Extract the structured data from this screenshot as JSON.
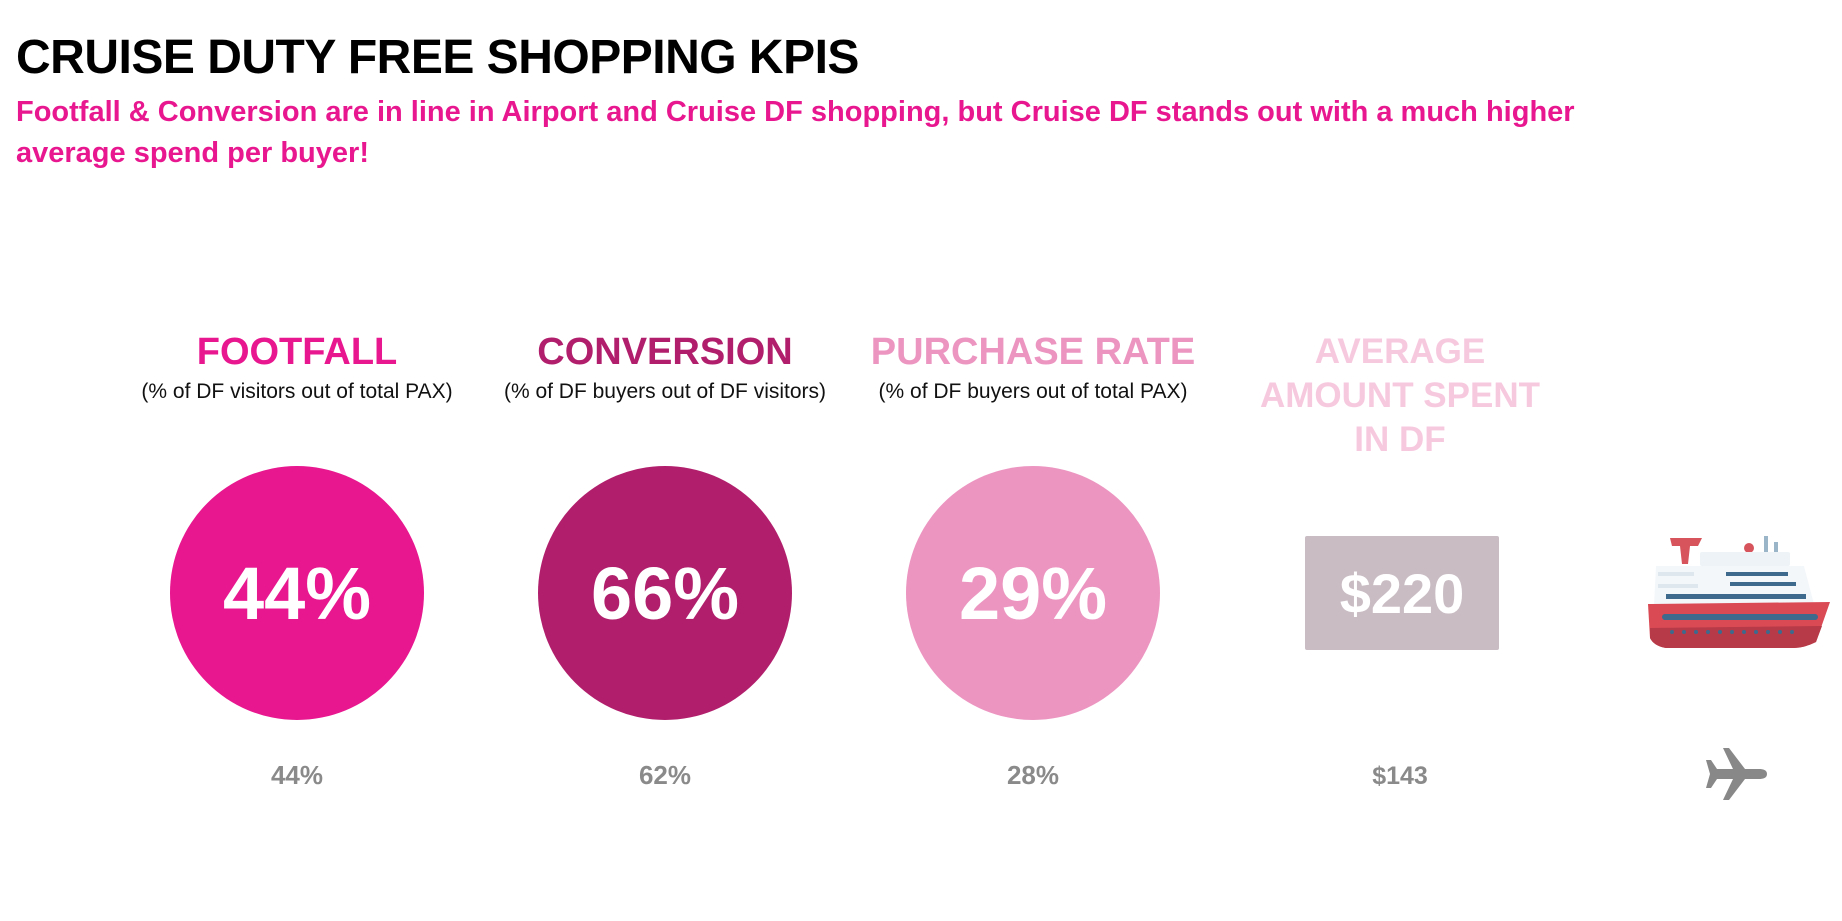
{
  "header": {
    "title": "CRUISE DUTY FREE SHOPPING KPIS",
    "subtitle": "Footfall & Conversion are in line in Airport and Cruise DF shopping, but Cruise DF stands out with a much higher average spend per buyer!"
  },
  "kpis": [
    {
      "label": "FOOTFALL",
      "sub": "(% of DF visitors out of total PAX)",
      "cruise": "44%",
      "airport": "44%",
      "color": "#e8168f"
    },
    {
      "label": "CONVERSION",
      "sub": "(% of DF buyers out of DF visitors)",
      "cruise": "66%",
      "airport": "62%",
      "color": "#b11f6c"
    },
    {
      "label": "PURCHASE RATE",
      "sub": "(% of DF buyers out of total PAX)",
      "cruise": "29%",
      "airport": "28%",
      "color": "#ec95c1"
    },
    {
      "label": "AVERAGE AMOUNT SPENT IN DF",
      "sub": "",
      "cruise": "$220",
      "airport": "$143",
      "color": "#f7c9df"
    }
  ],
  "legend": {
    "cruise_icon": "cruise-ship-icon",
    "airport_icon": "airplane-icon"
  },
  "colors": {
    "title": "#000000",
    "subtitle": "#e8168f",
    "box": "#c9bcc3",
    "compare_text": "#8a8a8a"
  }
}
